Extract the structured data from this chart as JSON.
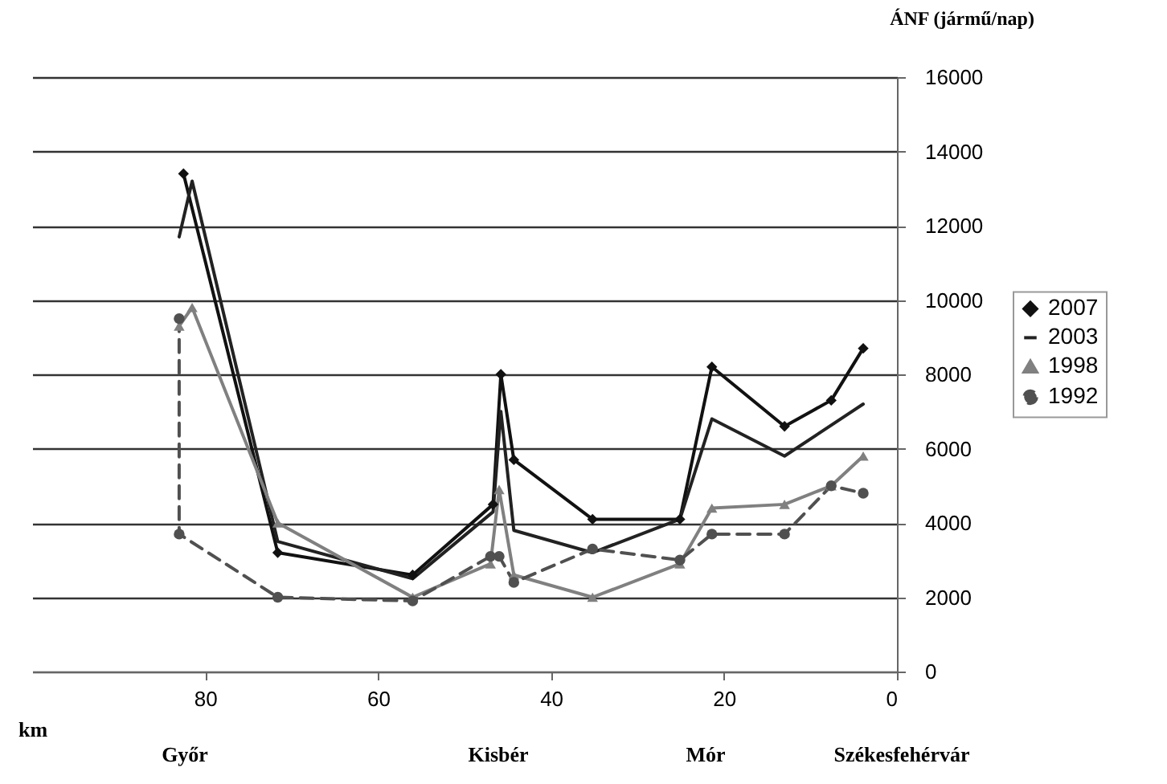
{
  "chart_data": {
    "type": "line",
    "xlabel": "km",
    "ylabel": "ÁNF (jármű/nap)",
    "xlim": [
      100,
      0
    ],
    "xticks": [
      80,
      60,
      40,
      20,
      0
    ],
    "ylim": [
      0,
      16000
    ],
    "yticks": [
      0,
      2000,
      4000,
      6000,
      8000,
      10000,
      12000,
      14000,
      16000
    ],
    "grid": "y",
    "legend": "right",
    "annotations": [
      "Győr",
      "Kisbér",
      "Mór",
      "Székesfehérvár"
    ],
    "series": [
      {
        "name": "2007",
        "color": "#111111",
        "marker": "diamond",
        "line_style": "solid",
        "x": [
          82.5,
          71.6,
          56,
          46.7,
          45.8,
          44.3,
          35.2,
          25.1,
          21.4,
          13,
          7.6,
          3.9
        ],
        "values": [
          13400,
          3200,
          2600,
          4500,
          8000,
          5700,
          4100,
          4100,
          8200,
          6600,
          7300,
          8700
        ]
      },
      {
        "name": "2003",
        "color": "#222222",
        "marker": "none",
        "line_style": "solid",
        "x": [
          83,
          81.5,
          71.6,
          56,
          46.7,
          45.8,
          44.3,
          35.2,
          25.1,
          21.4,
          13,
          3.9
        ],
        "values": [
          11700,
          13200,
          3500,
          2500,
          4300,
          7000,
          3800,
          3200,
          4100,
          6800,
          5800,
          7200
        ]
      },
      {
        "name": "1998",
        "color": "#808080",
        "marker": "triangle",
        "line_style": "solid",
        "x": [
          83,
          81.5,
          71.6,
          56,
          47,
          46,
          44.3,
          35.2,
          25.1,
          21.4,
          13,
          7.6,
          3.9
        ],
        "values": [
          9300,
          9800,
          4000,
          2000,
          2900,
          4900,
          2600,
          2000,
          2900,
          4400,
          4500,
          5000,
          5800
        ]
      },
      {
        "name": "1992",
        "color": "#505050",
        "marker": "circle",
        "line_style": "dashed",
        "x": [
          83,
          83,
          71.6,
          56,
          47,
          46,
          44.3,
          35.2,
          25.1,
          21.4,
          13,
          7.6,
          3.9
        ],
        "values": [
          9500,
          3700,
          2000,
          1900,
          3100,
          3100,
          2400,
          3300,
          3000,
          3700,
          3700,
          5000,
          4800
        ]
      }
    ]
  }
}
